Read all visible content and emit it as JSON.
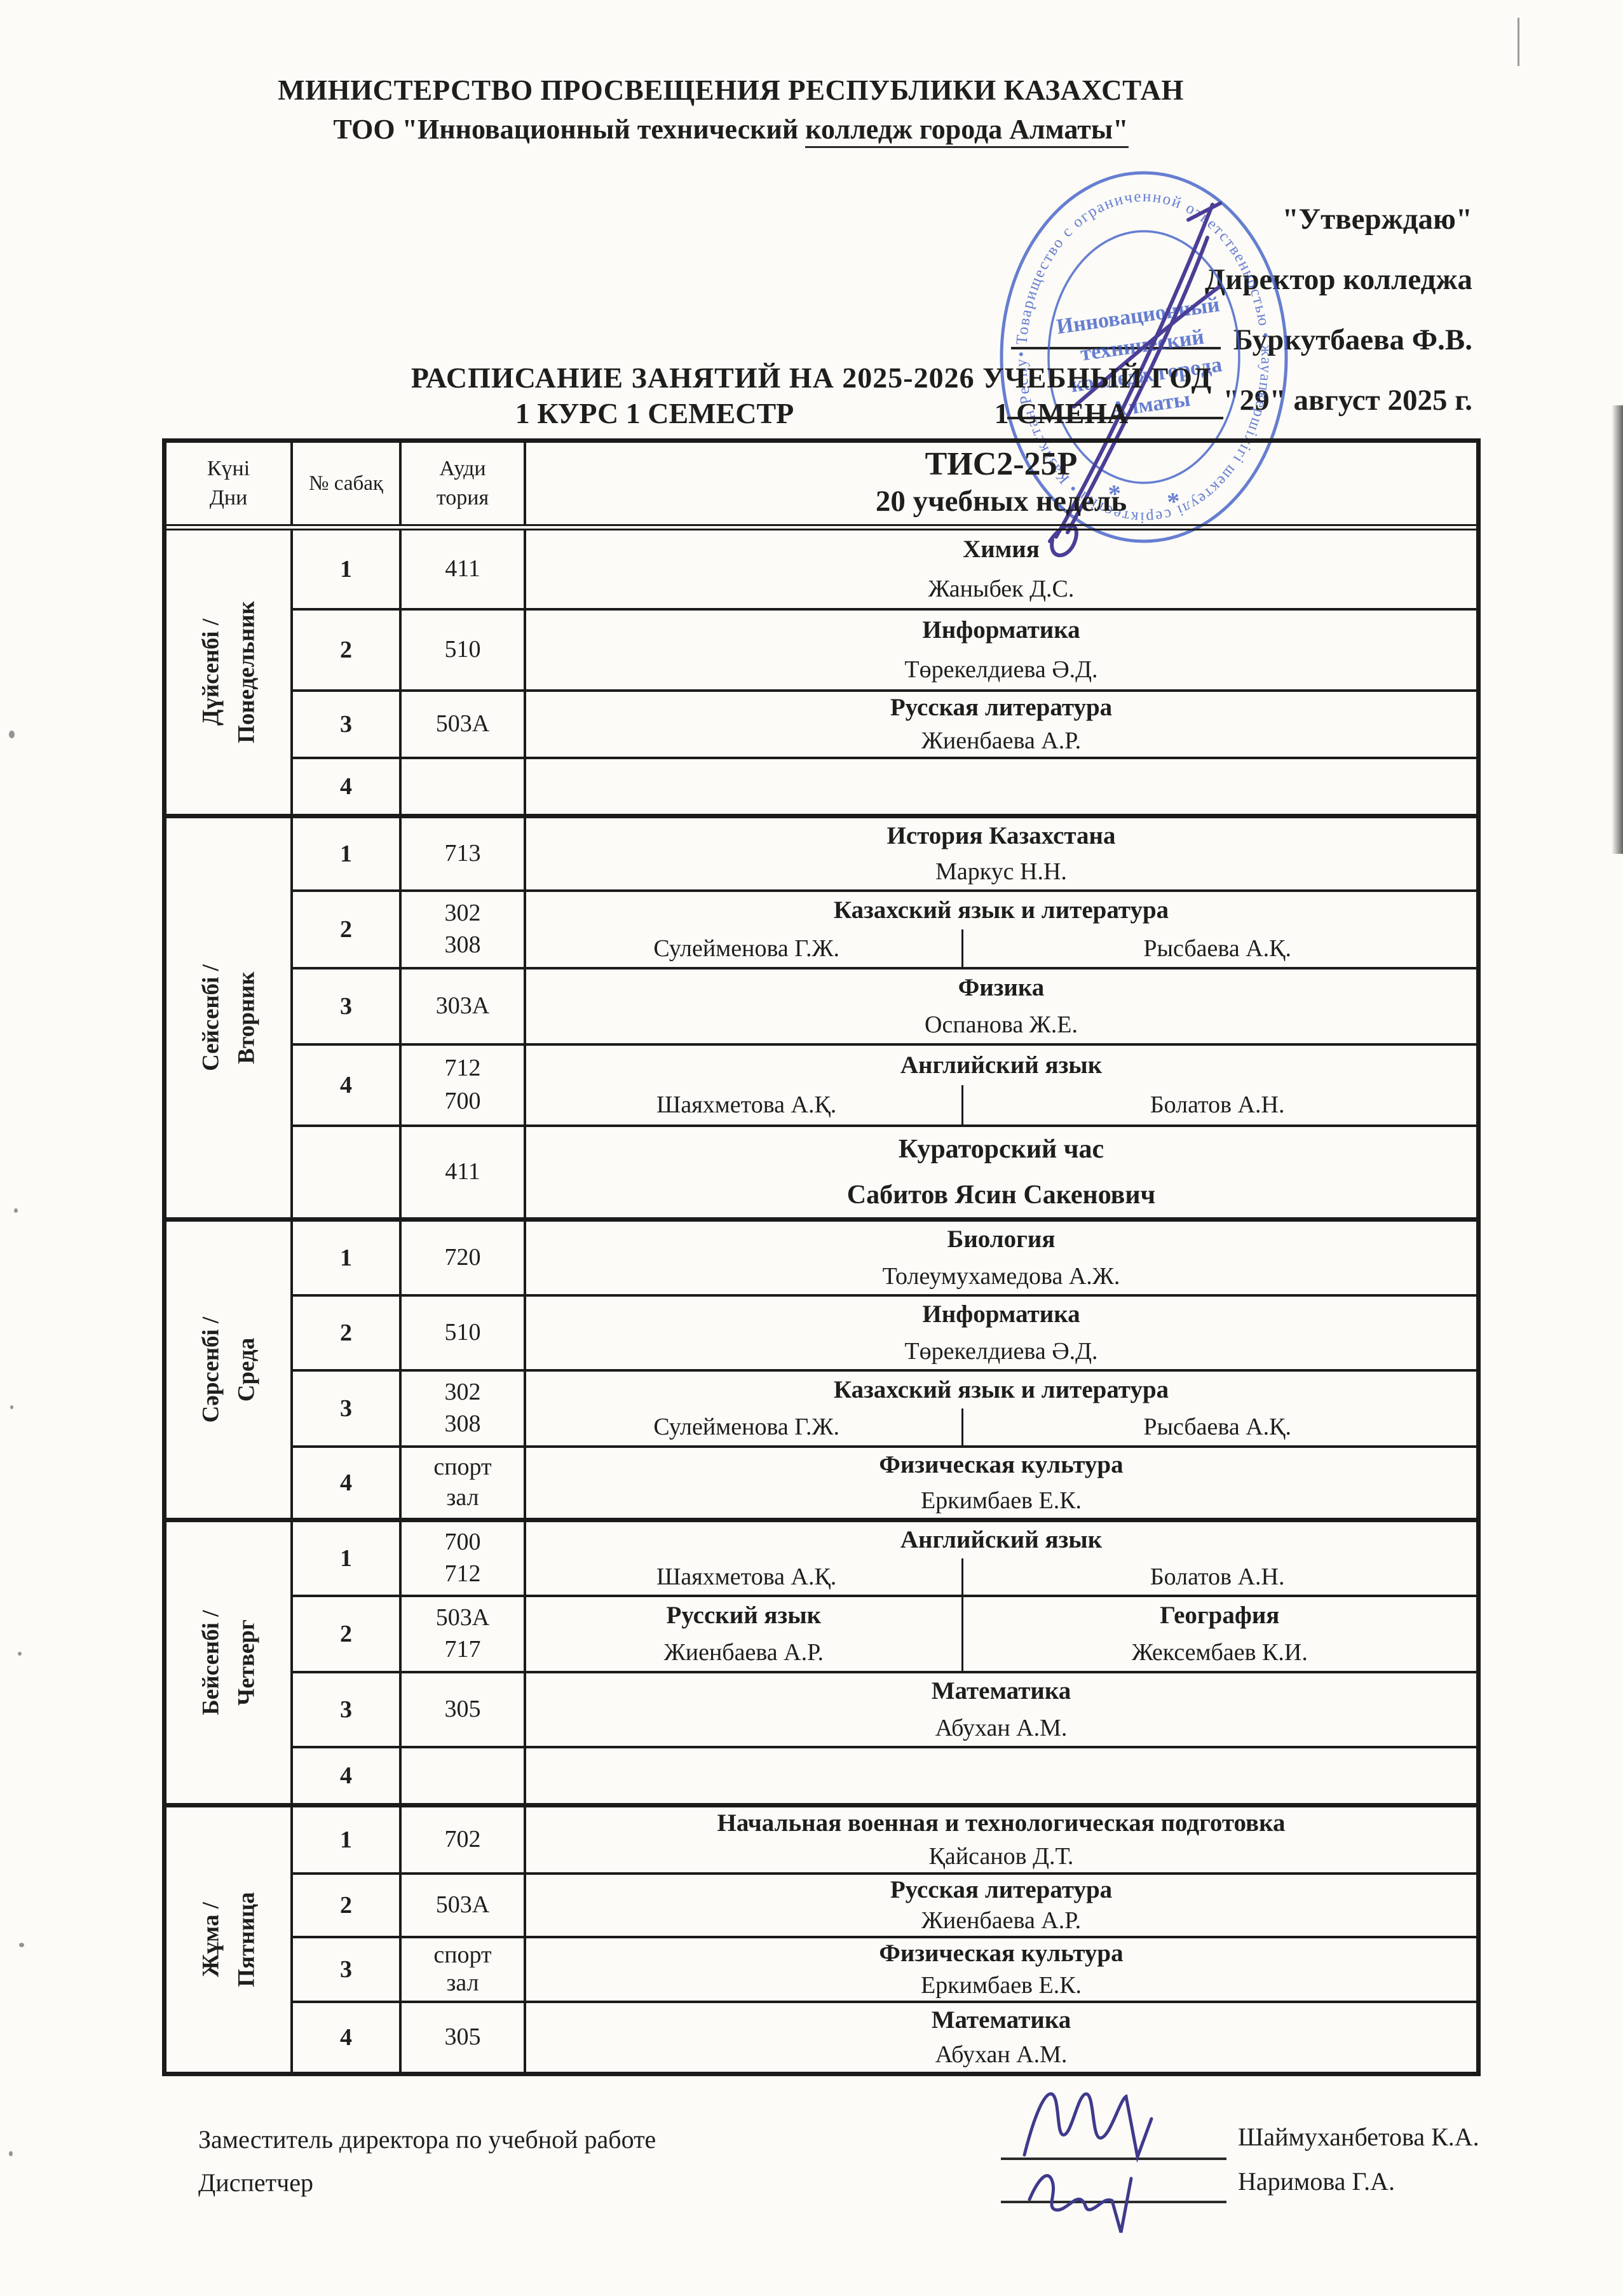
{
  "document": {
    "ministry": "МИНИСТЕРСТВО ПРОСВЕЩЕНИЯ РЕСПУБЛИКИ КАЗАХСТАН",
    "college_part1": "ТОО \"Инновационный  технический  ",
    "college_part2": "колледж города Алматы\"",
    "approval": {
      "approve": "\"Утверждаю\"",
      "director_title": "Директор колледжа",
      "director_name": "Буркутбаева Ф.В.",
      "date": "\"29\"  август  2025 г."
    },
    "stamp": {
      "ring_text": "• Товарищество с ограниченной ответственностью • жауапкершілігі шектеулі серіктестігі • Қазақстан Республикасы г.Алматы *",
      "center_lines": [
        "Инновационный",
        "технический",
        "колледж города",
        "Алматы"
      ],
      "color": "#3d5bc7"
    },
    "title": "РАСПИСАНИЕ ЗАНЯТИЙ  НА 2025-2026 УЧЕБНЫЙ ГОД",
    "subtitle_left": "1 КУРС 1 СЕМЕСТР",
    "subtitle_right": "1 СМЕНА"
  },
  "table": {
    "header": {
      "day_kk": "Күні",
      "day_ru": "Дни",
      "lesson_no": "№ сабақ",
      "room_line1": "Ауди",
      "room_line2": "тория",
      "group": "ТИС2-25Р",
      "weeks": "20 учебных недель"
    },
    "days": [
      {
        "kk": "Дүйсенбі /",
        "ru": "Понедельник",
        "rows": [
          {
            "no": "1",
            "rooms": [
              "411"
            ],
            "type": "single",
            "subject": "Химия",
            "teacher": "Жаныбек Д.С."
          },
          {
            "no": "2",
            "rooms": [
              "510"
            ],
            "type": "single",
            "subject": "Информатика",
            "teacher": "Төрекелдиева Ә.Д."
          },
          {
            "no": "3",
            "rooms": [
              "503А"
            ],
            "type": "single",
            "subject": "Русская литература",
            "teacher": "Жиенбаева А.Р."
          },
          {
            "no": "4",
            "rooms": [],
            "type": "empty"
          }
        ]
      },
      {
        "kk": "Сейсенбі /",
        "ru": "Вторник",
        "rows": [
          {
            "no": "1",
            "rooms": [
              "713"
            ],
            "type": "single",
            "subject": "История Казахстана",
            "teacher": "Маркус Н.Н."
          },
          {
            "no": "2",
            "rooms": [
              "302",
              "308"
            ],
            "type": "split-teachers",
            "subject": "Казахский язык и литература",
            "teacher_left": "Сулейменова Г.Ж.",
            "teacher_right": "Рысбаева А.Қ."
          },
          {
            "no": "3",
            "rooms": [
              "303А"
            ],
            "type": "single",
            "subject": "Физика",
            "teacher": "Оспанова Ж.Е."
          },
          {
            "no": "4",
            "rooms": [
              "712",
              "700"
            ],
            "type": "split-teachers",
            "subject": "Английский язык",
            "teacher_left": "Шаяхметова А.Қ.",
            "teacher_right": "Болатов А.Н."
          },
          {
            "no": "",
            "rooms": [
              "411"
            ],
            "type": "curator",
            "subject": "Кураторский час",
            "teacher": "Сабитов Ясин Сакенович"
          }
        ]
      },
      {
        "kk": "Сәрсенбі /",
        "ru": "Среда",
        "rows": [
          {
            "no": "1",
            "rooms": [
              "720"
            ],
            "type": "single",
            "subject": "Биология",
            "teacher": "Толеумухамедова А.Ж."
          },
          {
            "no": "2",
            "rooms": [
              "510"
            ],
            "type": "single",
            "subject": "Информатика",
            "teacher": "Төрекелдиева Ә.Д."
          },
          {
            "no": "3",
            "rooms": [
              "302",
              "308"
            ],
            "type": "split-teachers",
            "subject": "Казахский язык и литература",
            "teacher_left": "Сулейменова Г.Ж.",
            "teacher_right": "Рысбаева А.Қ."
          },
          {
            "no": "4",
            "rooms": [
              "спорт",
              "зал"
            ],
            "type": "single",
            "subject": "Физическая культура",
            "teacher": "Еркимбаев Е.К."
          }
        ]
      },
      {
        "kk": "Бейсенбі /",
        "ru": "Четверг",
        "rows": [
          {
            "no": "1",
            "rooms": [
              "700",
              "712"
            ],
            "type": "split-teachers",
            "subject": "Английский язык",
            "teacher_left": "Шаяхметова А.Қ.",
            "teacher_right": "Болатов А.Н."
          },
          {
            "no": "2",
            "rooms": [
              "503А",
              "717"
            ],
            "type": "split-full",
            "left_subject": "Русский язык",
            "left_teacher": "Жиенбаева А.Р.",
            "right_subject": "География",
            "right_teacher": "Жексембаев К.И."
          },
          {
            "no": "3",
            "rooms": [
              "305"
            ],
            "type": "single",
            "subject": "Математика",
            "teacher": "Абухан А.М."
          },
          {
            "no": "4",
            "rooms": [],
            "type": "empty"
          }
        ]
      },
      {
        "kk": "Жұма /",
        "ru": "Пятница",
        "rows": [
          {
            "no": "1",
            "rooms": [
              "702"
            ],
            "type": "single",
            "subject": "Начальная военная и технологическая подготовка",
            "teacher": "Қайсанов Д.Т."
          },
          {
            "no": "2",
            "rooms": [
              "503А"
            ],
            "type": "single",
            "subject": "Русская литература",
            "teacher": "Жиенбаева А.Р."
          },
          {
            "no": "3",
            "rooms": [
              "спорт",
              "зал"
            ],
            "type": "single",
            "subject": "Физическая культура",
            "teacher": "Еркимбаев Е.К."
          },
          {
            "no": "4",
            "rooms": [
              "305"
            ],
            "type": "single",
            "subject": "Математика",
            "teacher": "Абухан А.М."
          }
        ]
      }
    ]
  },
  "footer": {
    "role1": "Заместитель директора по учебной работе",
    "name1": "Шаймуханбетова К.А.",
    "role2": "Диспетчер",
    "name2": "Наримова Г.А."
  }
}
